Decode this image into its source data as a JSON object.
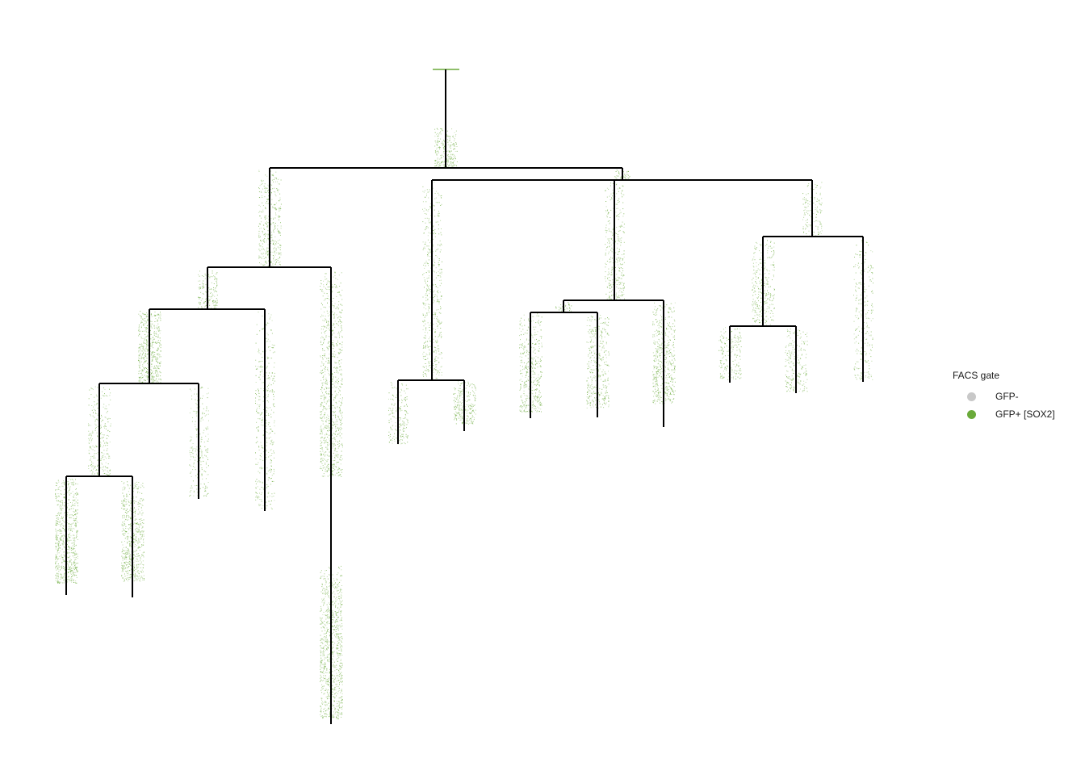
{
  "legend": {
    "title": "FACS gate",
    "items": [
      {
        "label": "GFP-",
        "color": "#c8c8c8"
      },
      {
        "label": "GFP+ [SOX2]",
        "color": "#6aaa3a"
      }
    ]
  },
  "colors": {
    "tree_line": "#000000",
    "cell_points": "#6aaa3a"
  }
}
